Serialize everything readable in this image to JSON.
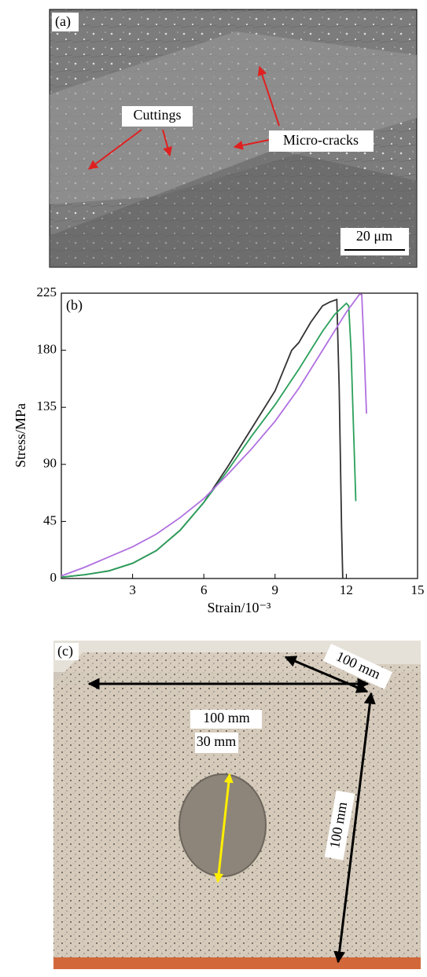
{
  "panel_a": {
    "label": "(a)",
    "annotations": [
      "Cuttings",
      "Micro-cracks"
    ],
    "scale_bar": "20 μm"
  },
  "chart_data": {
    "type": "line",
    "label": "(b)",
    "x_label": "Strain/10⁻³",
    "y_label": "Stress/MPa",
    "xlim": [
      0,
      15
    ],
    "xticks": [
      3,
      6,
      9,
      12,
      15
    ],
    "ylim": [
      0,
      225
    ],
    "yticks": [
      0,
      45,
      90,
      135,
      180,
      225
    ],
    "series": [
      {
        "color": "#333333",
        "x": [
          0,
          1,
          2,
          3,
          4,
          5,
          6,
          7,
          8,
          9,
          9.7,
          10,
          10.5,
          11,
          11.3,
          11.6,
          11.7,
          11.8,
          11.85
        ],
        "values": [
          1,
          3,
          6,
          12,
          22,
          38,
          60,
          88,
          118,
          148,
          180,
          186,
          202,
          215,
          218,
          220,
          150,
          40,
          0
        ]
      },
      {
        "color": "#2aa05a",
        "x": [
          0,
          1,
          2,
          3,
          4,
          5,
          6,
          7,
          8,
          9,
          10,
          11,
          11.5,
          12,
          12.1,
          12.2,
          12.3,
          12.4
        ],
        "values": [
          1,
          3,
          6,
          12,
          22,
          38,
          60,
          85,
          112,
          137,
          165,
          195,
          208,
          217,
          215,
          180,
          120,
          61
        ]
      },
      {
        "color": "#b070e0",
        "x": [
          0,
          1,
          2,
          3,
          4,
          5,
          6,
          7,
          8,
          9,
          10,
          11,
          12,
          12.55,
          12.65,
          12.75,
          12.85
        ],
        "values": [
          2,
          9,
          17,
          25,
          35,
          48,
          63,
          82,
          102,
          124,
          150,
          180,
          210,
          224,
          224,
          180,
          130
        ]
      }
    ]
  },
  "panel_c": {
    "label": "(c)",
    "dimensions": [
      "100 mm",
      "100 mm",
      "100 mm",
      "30 mm"
    ]
  }
}
